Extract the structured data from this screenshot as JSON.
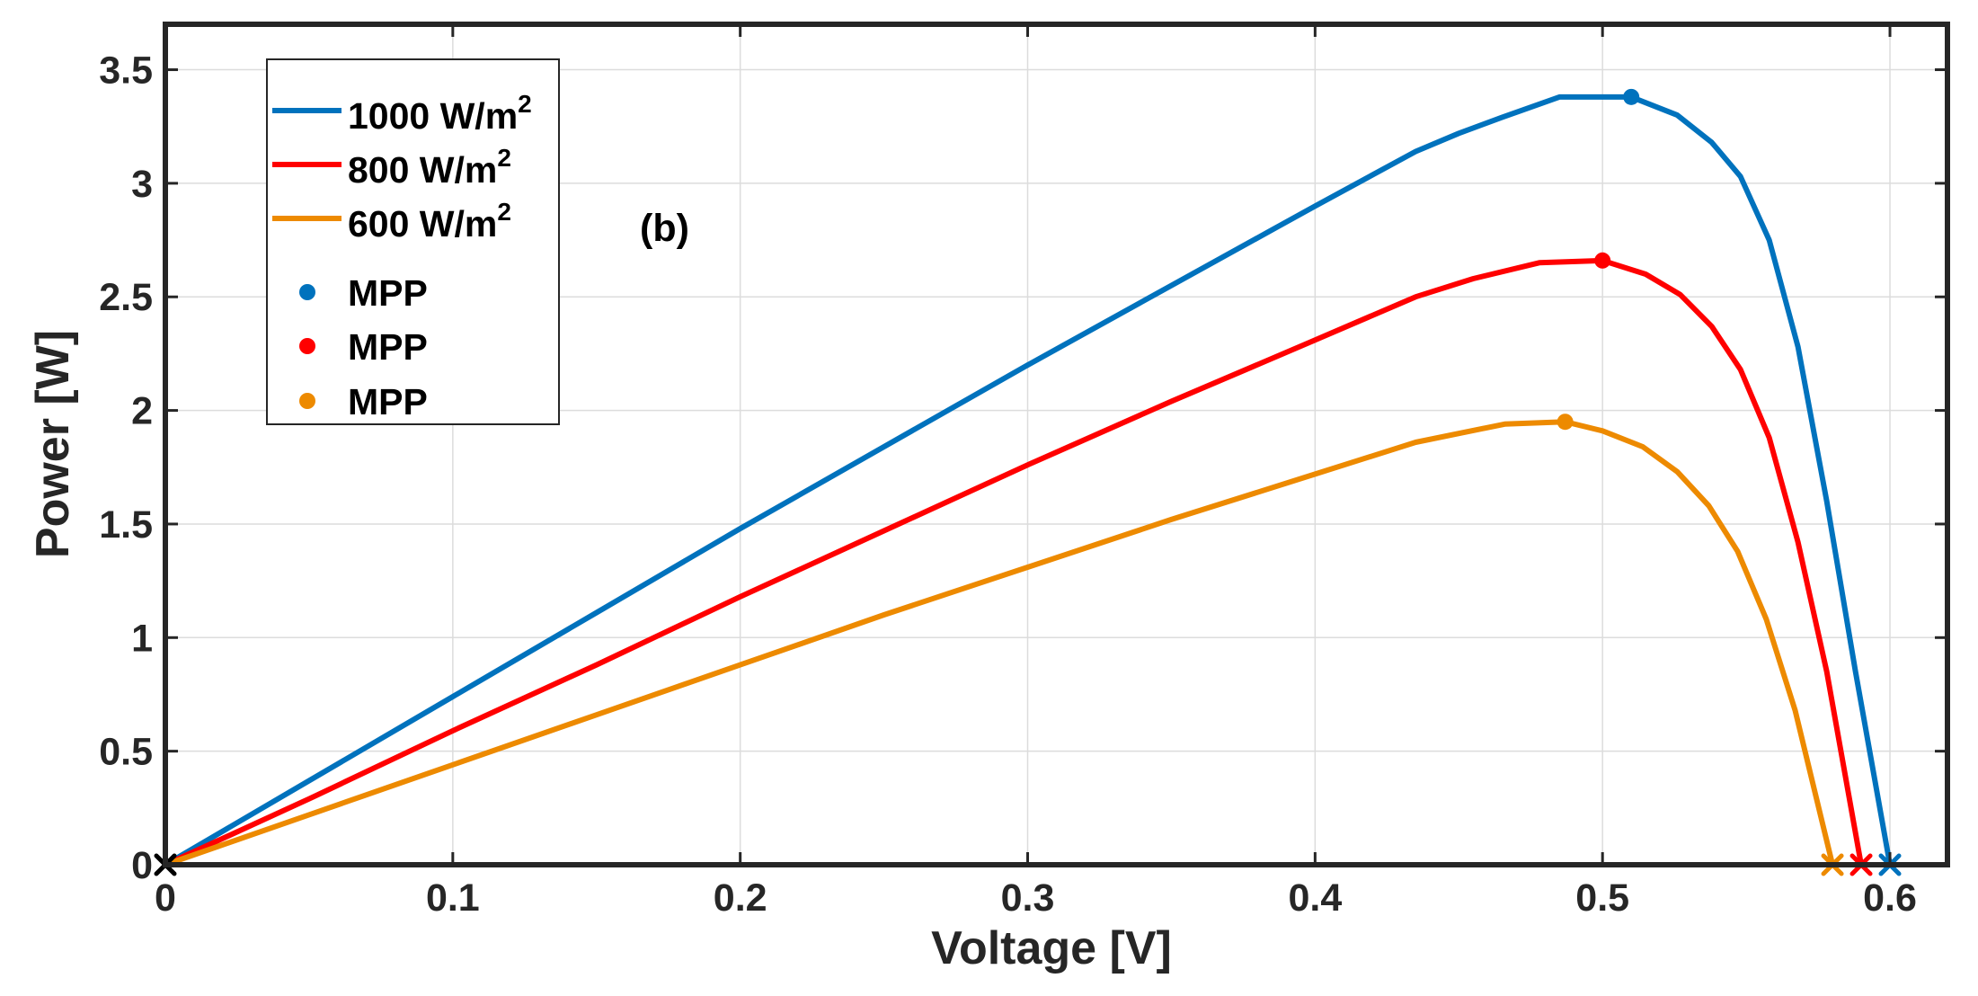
{
  "chart_data": {
    "type": "line",
    "panel_label": "(b)",
    "xlabel": "Voltage [V]",
    "ylabel": "Power [W]",
    "xlim": [
      0,
      0.62
    ],
    "ylim": [
      0,
      3.7
    ],
    "xticks": [
      0,
      0.1,
      0.2,
      0.3,
      0.4,
      0.5,
      0.6
    ],
    "xtick_labels": [
      "0",
      "0.1",
      "0.2",
      "0.3",
      "0.4",
      "0.5",
      "0.6"
    ],
    "yticks": [
      0,
      0.5,
      1,
      1.5,
      2,
      2.5,
      3,
      3.5
    ],
    "ytick_labels": [
      "0",
      "0.5",
      "1",
      "1.5",
      "2",
      "2.5",
      "3",
      "3.5"
    ],
    "grid": true,
    "legend_position": "top-left",
    "series": [
      {
        "name": "1000 W/m",
        "superscript": "2",
        "color": "#0072BD",
        "x": [
          0,
          0.05,
          0.1,
          0.15,
          0.2,
          0.25,
          0.3,
          0.35,
          0.4,
          0.435,
          0.45,
          0.465,
          0.485,
          0.51,
          0.526,
          0.538,
          0.548,
          0.558,
          0.568,
          0.578,
          0.588,
          0.6
        ],
        "y": [
          0,
          0.37,
          0.74,
          1.11,
          1.48,
          1.84,
          2.2,
          2.55,
          2.9,
          3.14,
          3.22,
          3.29,
          3.38,
          3.38,
          3.3,
          3.18,
          3.03,
          2.75,
          2.28,
          1.6,
          0.85,
          0
        ]
      },
      {
        "name": "800 W/m",
        "superscript": "2",
        "color": "#FF0000",
        "x": [
          0,
          0.05,
          0.1,
          0.15,
          0.2,
          0.25,
          0.3,
          0.35,
          0.4,
          0.435,
          0.455,
          0.478,
          0.5,
          0.515,
          0.527,
          0.538,
          0.548,
          0.558,
          0.568,
          0.578,
          0.59
        ],
        "y": [
          0,
          0.29,
          0.59,
          0.88,
          1.18,
          1.47,
          1.76,
          2.04,
          2.31,
          2.5,
          2.58,
          2.65,
          2.66,
          2.6,
          2.51,
          2.37,
          2.18,
          1.88,
          1.42,
          0.85,
          0
        ]
      },
      {
        "name": "600 W/m",
        "superscript": "2",
        "color": "#ED8A00",
        "x": [
          0,
          0.05,
          0.1,
          0.15,
          0.2,
          0.25,
          0.3,
          0.35,
          0.4,
          0.435,
          0.466,
          0.487,
          0.5,
          0.514,
          0.526,
          0.537,
          0.547,
          0.557,
          0.567,
          0.58
        ],
        "y": [
          0,
          0.22,
          0.44,
          0.66,
          0.88,
          1.1,
          1.31,
          1.52,
          1.72,
          1.86,
          1.94,
          1.95,
          1.91,
          1.84,
          1.73,
          1.58,
          1.38,
          1.08,
          0.68,
          0
        ]
      }
    ],
    "mpp": [
      {
        "name": "MPP",
        "color": "#0072BD",
        "x": 0.51,
        "y": 3.38
      },
      {
        "name": "MPP",
        "color": "#FF0000",
        "x": 0.5,
        "y": 2.66
      },
      {
        "name": "MPP",
        "color": "#ED8A00",
        "x": 0.487,
        "y": 1.95
      }
    ],
    "endpoints": [
      {
        "color": "#000000",
        "x": 0,
        "y": 0
      },
      {
        "color": "#ED8A00",
        "x": 0.58,
        "y": 0
      },
      {
        "color": "#FF0000",
        "x": 0.59,
        "y": 0
      },
      {
        "color": "#0072BD",
        "x": 0.6,
        "y": 0
      }
    ]
  }
}
